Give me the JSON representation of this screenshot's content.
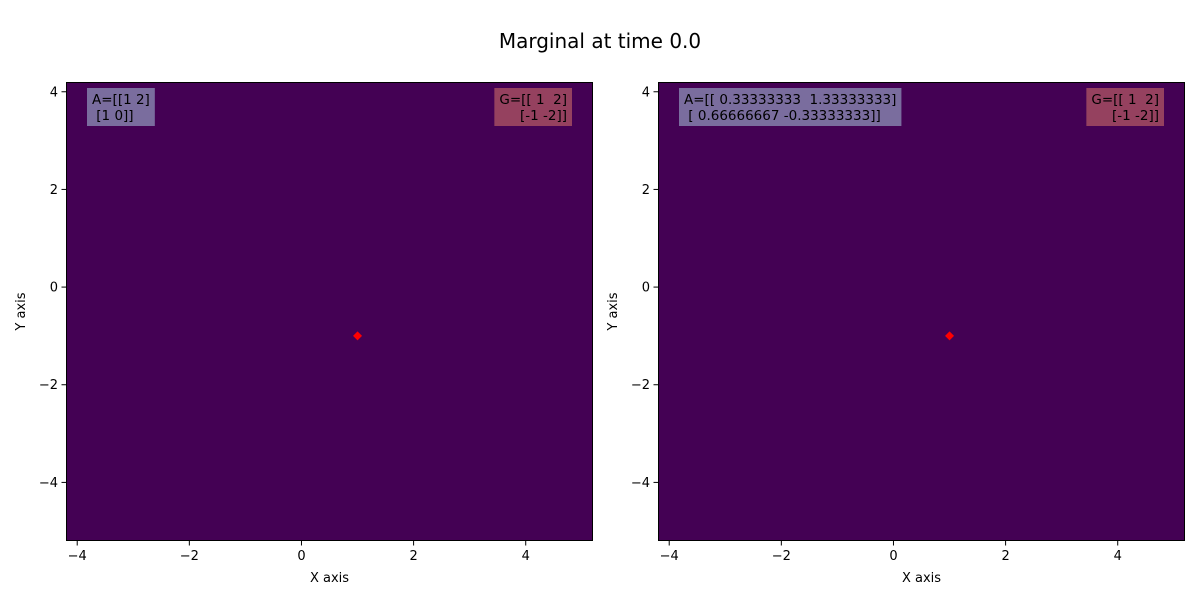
{
  "figure": {
    "title": "Marginal at time 0.0"
  },
  "chart_data": [
    {
      "type": "heatmap",
      "xlabel": "X axis",
      "ylabel": "Y axis",
      "xlim": [
        -4.2,
        5.2
      ],
      "ylim": [
        -5.2,
        4.2
      ],
      "xticks": [
        -4,
        -2,
        0,
        2,
        4
      ],
      "yticks": [
        -4,
        -2,
        0,
        2,
        4
      ],
      "xtick_labels": [
        "−4",
        "−2",
        "0",
        "2",
        "4"
      ],
      "ytick_labels": [
        "−4",
        "−2",
        "0",
        "2",
        "4"
      ],
      "background_color": "#440154",
      "grid": false,
      "point": {
        "x": 1,
        "y": -1,
        "color": "#ff0000",
        "marker": "diamond"
      },
      "annotations": {
        "a_matrix": {
          "lines": [
            "A=[[1 2]",
            " [1 0]]"
          ],
          "color": "#7a6d9e",
          "position": "top-left"
        },
        "g_matrix": {
          "lines": [
            "G=[[ 1  2]",
            " [-1 -2]]"
          ],
          "color": "#95415f",
          "position": "top-right"
        }
      }
    },
    {
      "type": "heatmap",
      "xlabel": "X axis",
      "ylabel": "Y axis",
      "xlim": [
        -4.2,
        5.2
      ],
      "ylim": [
        -5.2,
        4.2
      ],
      "xticks": [
        -4,
        -2,
        0,
        2,
        4
      ],
      "yticks": [
        -4,
        -2,
        0,
        2,
        4
      ],
      "xtick_labels": [
        "−4",
        "−2",
        "0",
        "2",
        "4"
      ],
      "ytick_labels": [
        "−4",
        "−2",
        "0",
        "2",
        "4"
      ],
      "background_color": "#440154",
      "grid": false,
      "point": {
        "x": 1,
        "y": -1,
        "color": "#ff0000",
        "marker": "diamond"
      },
      "annotations": {
        "a_matrix": {
          "lines": [
            "A=[[ 0.33333333  1.33333333]",
            " [ 0.66666667 -0.33333333]]"
          ],
          "color": "#7a6d9e",
          "position": "top-left"
        },
        "g_matrix": {
          "lines": [
            "G=[[ 1  2]",
            " [-1 -2]]"
          ],
          "color": "#95415f",
          "position": "top-right"
        }
      }
    }
  ]
}
